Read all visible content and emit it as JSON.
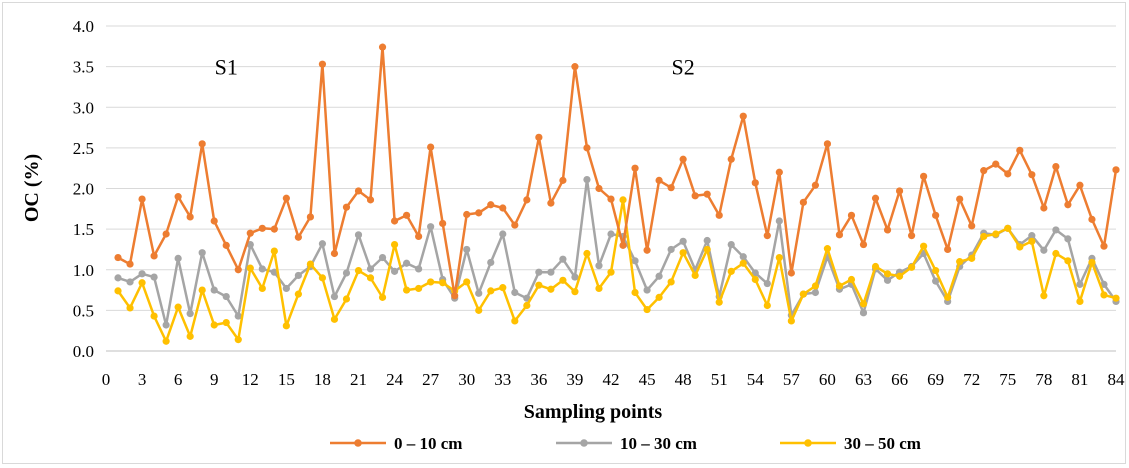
{
  "chart_data": {
    "type": "line",
    "xlabel": "Sampling points",
    "ylabel": "OC (%)",
    "ylim": [
      0,
      4
    ],
    "yticks": [
      "0.0",
      "0.5",
      "1.0",
      "1.5",
      "2.0",
      "2.5",
      "3.0",
      "3.5",
      "4.0"
    ],
    "xlim": [
      0,
      84
    ],
    "xticks": [
      "0",
      "3",
      "6",
      "9",
      "12",
      "15",
      "18",
      "21",
      "24",
      "27",
      "30",
      "33",
      "36",
      "39",
      "42",
      "45",
      "48",
      "51",
      "54",
      "57",
      "60",
      "63",
      "66",
      "69",
      "72",
      "75",
      "78",
      "81",
      "84"
    ],
    "grid": "horizontal",
    "legend_position": "bottom",
    "annotations": [
      {
        "text": "S1",
        "x": 10,
        "y": 3.5
      },
      {
        "text": "S2",
        "x": 48,
        "y": 3.5
      }
    ],
    "x": [
      1,
      2,
      3,
      4,
      5,
      6,
      7,
      8,
      9,
      10,
      11,
      12,
      13,
      14,
      15,
      16,
      17,
      18,
      19,
      20,
      21,
      22,
      23,
      24,
      25,
      26,
      27,
      28,
      29,
      30,
      31,
      32,
      33,
      34,
      35,
      36,
      37,
      38,
      39,
      40,
      41,
      42,
      43,
      44,
      45,
      46,
      47,
      48,
      49,
      50,
      51,
      52,
      53,
      54,
      55,
      56,
      57,
      58,
      59,
      60,
      61,
      62,
      63,
      64,
      65,
      66,
      67,
      68,
      69,
      70,
      71,
      72,
      73,
      74,
      75,
      76,
      77,
      78,
      79,
      80,
      81,
      82,
      83,
      84
    ],
    "series": [
      {
        "name": "0 – 10 cm",
        "color": "#ED7D31",
        "values": [
          1.15,
          1.07,
          1.87,
          1.17,
          1.44,
          1.9,
          1.65,
          2.55,
          1.6,
          1.3,
          1.0,
          1.45,
          1.51,
          1.5,
          1.88,
          1.4,
          1.65,
          3.53,
          1.2,
          1.77,
          1.97,
          1.86,
          3.74,
          1.6,
          1.67,
          1.41,
          2.51,
          1.57,
          0.68,
          1.68,
          1.7,
          1.8,
          1.76,
          1.55,
          1.86,
          2.63,
          1.82,
          2.1,
          3.5,
          2.5,
          2.0,
          1.87,
          1.3,
          2.25,
          1.24,
          2.1,
          2.01,
          2.36,
          1.91,
          1.93,
          1.67,
          2.36,
          2.89,
          2.07,
          1.42,
          2.2,
          0.96,
          1.83,
          2.04,
          2.55,
          1.43,
          1.67,
          1.31,
          1.88,
          1.49,
          1.97,
          1.42,
          2.15,
          1.67,
          1.25,
          1.87,
          1.54,
          2.22,
          2.3,
          2.18,
          2.47,
          2.17,
          1.76,
          2.27,
          1.8,
          2.04,
          1.62,
          1.29,
          2.23
        ]
      },
      {
        "name": "10 – 30 cm",
        "color": "#A5A5A5",
        "values": [
          0.9,
          0.85,
          0.95,
          0.91,
          0.32,
          1.14,
          0.46,
          1.21,
          0.75,
          0.67,
          0.43,
          1.31,
          1.01,
          0.97,
          0.77,
          0.93,
          1.04,
          1.32,
          0.67,
          0.96,
          1.43,
          1.01,
          1.15,
          0.98,
          1.08,
          1.01,
          1.53,
          0.88,
          0.65,
          1.25,
          0.71,
          1.09,
          1.44,
          0.72,
          0.65,
          0.97,
          0.97,
          1.13,
          0.91,
          2.11,
          1.05,
          1.44,
          1.41,
          1.11,
          0.75,
          0.92,
          1.25,
          1.35,
          1.0,
          1.36,
          0.67,
          1.31,
          1.16,
          0.96,
          0.83,
          1.6,
          0.44,
          0.7,
          0.72,
          1.16,
          0.76,
          0.82,
          0.47,
          1.01,
          0.87,
          0.97,
          1.04,
          1.2,
          0.86,
          0.61,
          1.04,
          1.18,
          1.45,
          1.43,
          1.51,
          1.31,
          1.42,
          1.24,
          1.49,
          1.38,
          0.82,
          1.14,
          0.82,
          0.61
        ]
      },
      {
        "name": "30 – 50 cm",
        "color": "#FFC000",
        "values": [
          0.74,
          0.53,
          0.84,
          0.43,
          0.12,
          0.54,
          0.18,
          0.75,
          0.32,
          0.35,
          0.14,
          1.02,
          0.77,
          1.23,
          0.31,
          0.7,
          1.07,
          0.9,
          0.39,
          0.64,
          0.99,
          0.9,
          0.66,
          1.31,
          0.75,
          0.77,
          0.85,
          0.84,
          0.74,
          0.85,
          0.5,
          0.74,
          0.78,
          0.37,
          0.56,
          0.81,
          0.76,
          0.87,
          0.73,
          1.2,
          0.77,
          0.97,
          1.86,
          0.72,
          0.51,
          0.66,
          0.85,
          1.21,
          0.93,
          1.25,
          0.6,
          0.98,
          1.08,
          0.88,
          0.56,
          1.15,
          0.37,
          0.7,
          0.8,
          1.26,
          0.8,
          0.88,
          0.58,
          1.04,
          0.95,
          0.92,
          1.03,
          1.29,
          0.99,
          0.66,
          1.1,
          1.14,
          1.41,
          1.44,
          1.51,
          1.28,
          1.35,
          0.68,
          1.2,
          1.11,
          0.61,
          1.09,
          0.69,
          0.65
        ]
      }
    ]
  }
}
